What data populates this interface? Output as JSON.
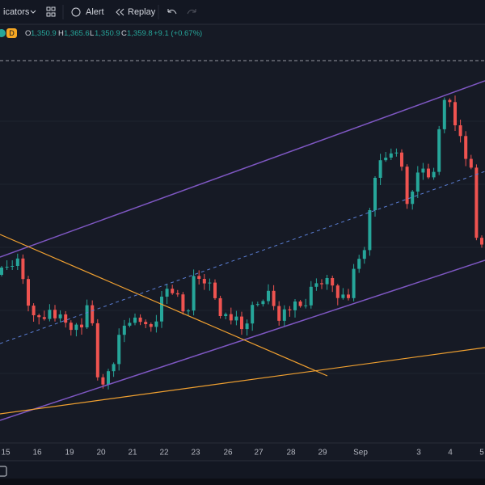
{
  "toolbar": {
    "indicators": "icators",
    "alert": "Alert",
    "replay": "Replay"
  },
  "legend": {
    "interval": "D",
    "open_label": "O",
    "open": "1,350.9",
    "high_label": "H",
    "high": "1,365.6",
    "low_label": "L",
    "low": "1,350.9",
    "close_label": "C",
    "close": "1,359.8",
    "change": "+9.1 (+0.67%)"
  },
  "x_axis": {
    "labels": [
      "15",
      "16",
      "19",
      "20",
      "21",
      "22",
      "23",
      "26",
      "27",
      "28",
      "29",
      "Sep",
      "3",
      "4",
      "5"
    ]
  }
}
